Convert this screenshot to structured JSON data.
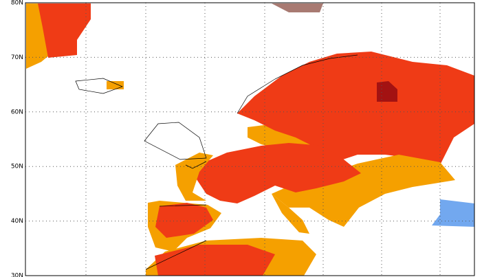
{
  "map": {
    "latitude_labels": [
      "80N",
      "70N",
      "60N",
      "50N",
      "40N",
      "30N"
    ]
  }
}
